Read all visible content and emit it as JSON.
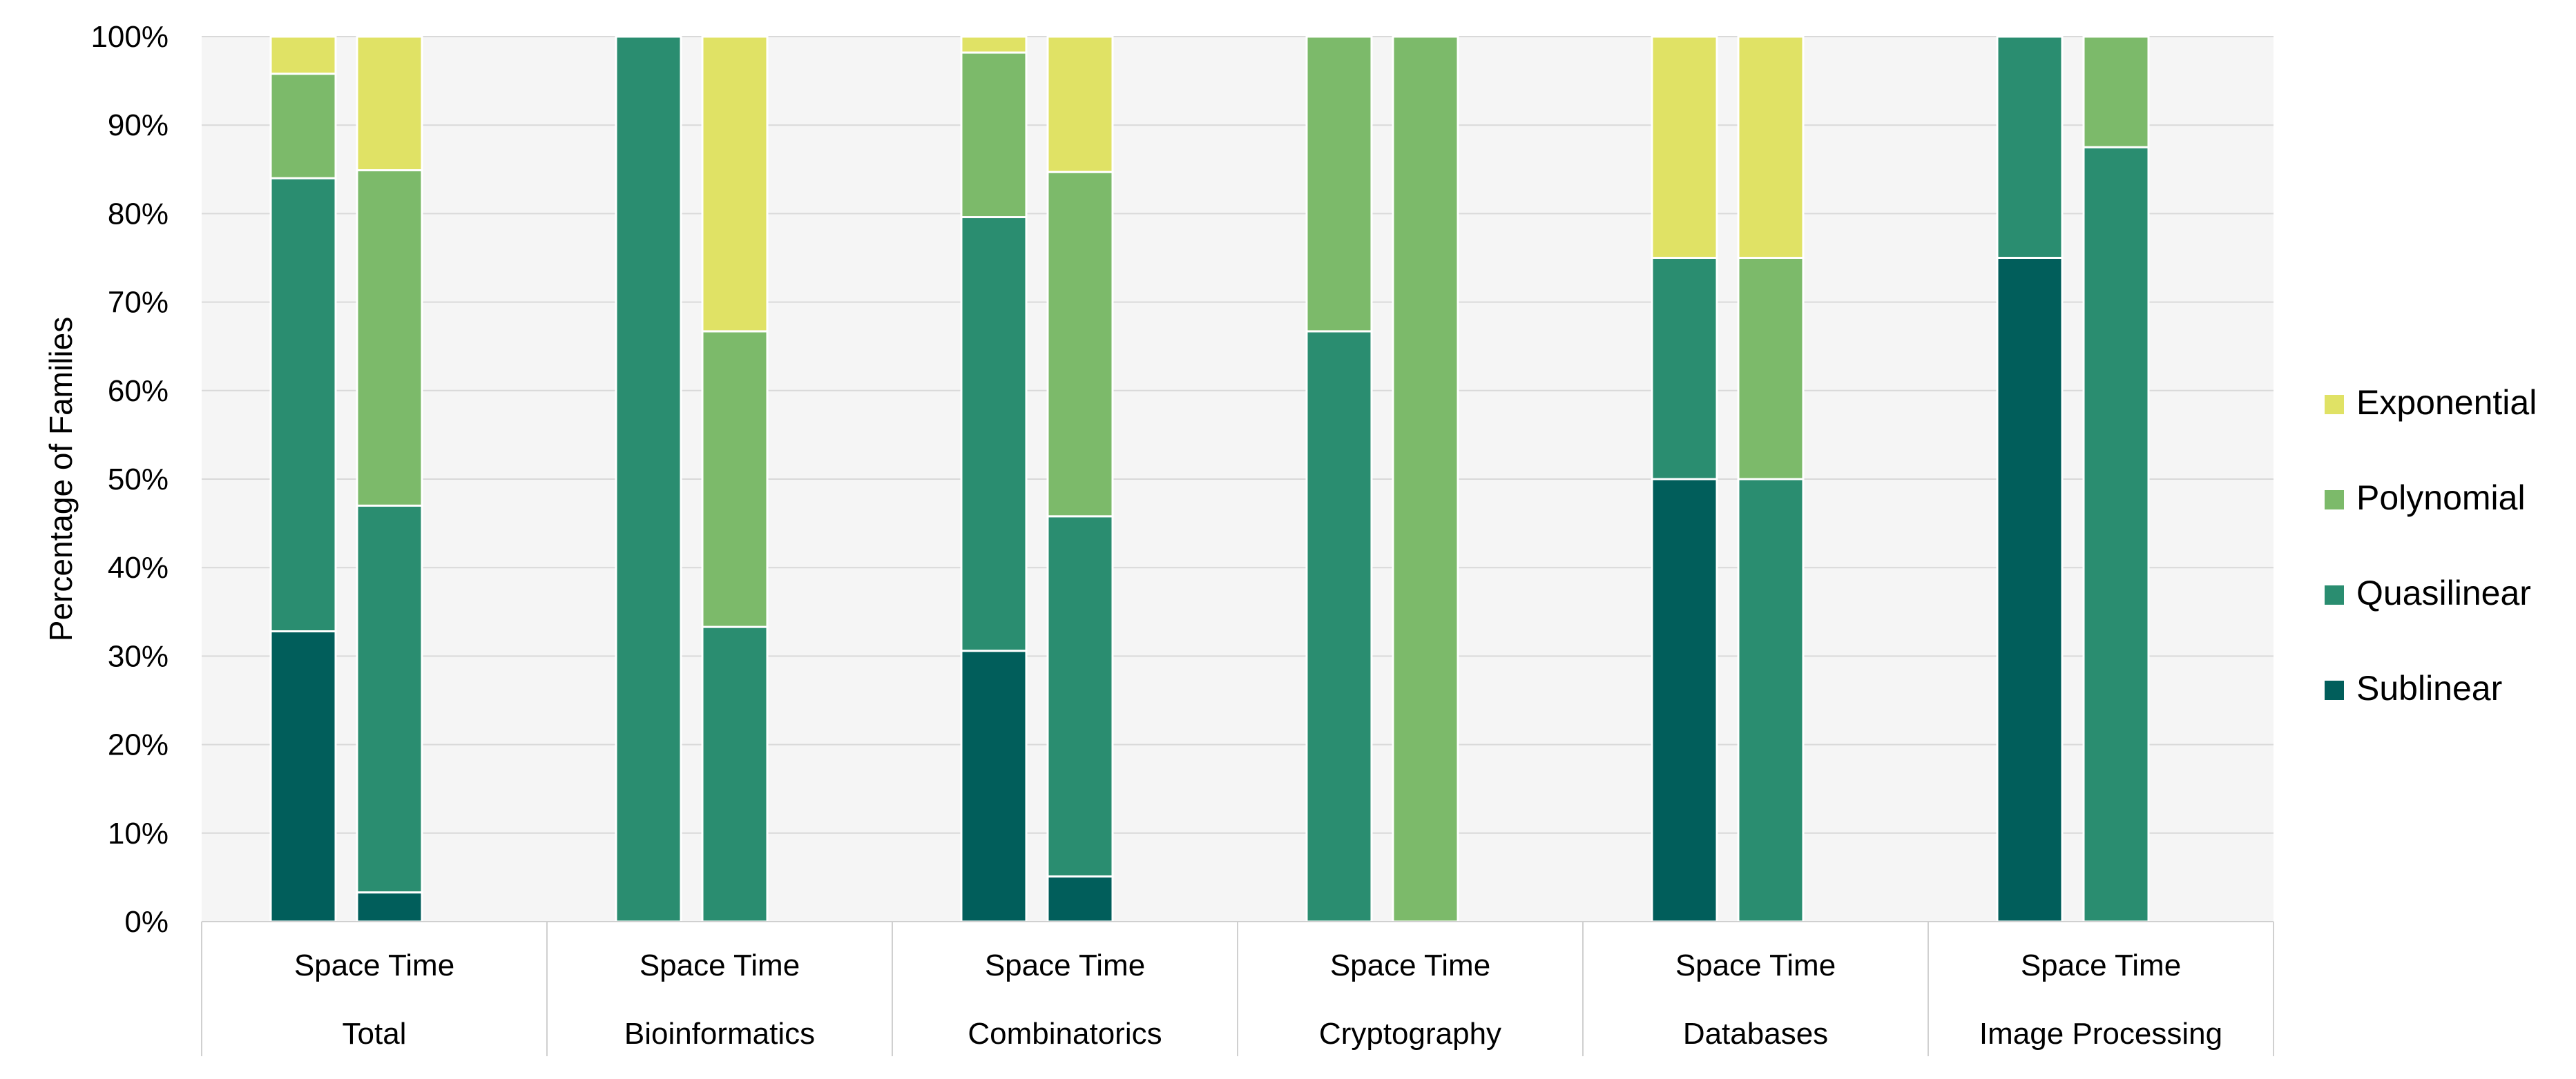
{
  "chart_data": {
    "type": "bar",
    "stacked": true,
    "normalized": true,
    "title": "",
    "ylabel": "Percentage of Families",
    "xlabel": "",
    "ylim": [
      0,
      100
    ],
    "yticks": [
      "0%",
      "10%",
      "20%",
      "30%",
      "40%",
      "50%",
      "60%",
      "70%",
      "80%",
      "90%",
      "100%"
    ],
    "grid": true,
    "legend_position": "right",
    "categories": [
      "Total",
      "Bioinformatics",
      "Combinatorics",
      "Cryptography",
      "Databases",
      "Image Processing"
    ],
    "subcategories": [
      "Space",
      "Time"
    ],
    "legend_order": [
      "Exponential",
      "Polynomial",
      "Quasilinear",
      "Sublinear"
    ],
    "series": [
      {
        "name": "Sublinear",
        "color": "#015e5b",
        "values": [
          [
            32.8,
            3.3
          ],
          [
            0,
            0
          ],
          [
            30.6,
            5.1
          ],
          [
            0,
            0
          ],
          [
            50.0,
            0
          ],
          [
            75.0,
            0
          ]
        ]
      },
      {
        "name": "Quasilinear",
        "color": "#2a8d70",
        "values": [
          [
            51.2,
            43.7
          ],
          [
            100,
            33.3
          ],
          [
            49.0,
            40.7
          ],
          [
            66.7,
            0
          ],
          [
            25.0,
            50.0
          ],
          [
            25.0,
            87.5
          ]
        ]
      },
      {
        "name": "Polynomial",
        "color": "#7cba6a",
        "values": [
          [
            11.8,
            37.9
          ],
          [
            0,
            33.4
          ],
          [
            18.6,
            38.9
          ],
          [
            33.3,
            100
          ],
          [
            0,
            25.0
          ],
          [
            0,
            12.5
          ]
        ]
      },
      {
        "name": "Exponential",
        "color": "#e0e265",
        "values": [
          [
            4.2,
            15.1
          ],
          [
            0,
            33.3
          ],
          [
            1.8,
            15.3
          ],
          [
            0,
            0
          ],
          [
            25.0,
            25.0
          ],
          [
            0,
            0
          ]
        ]
      }
    ]
  }
}
